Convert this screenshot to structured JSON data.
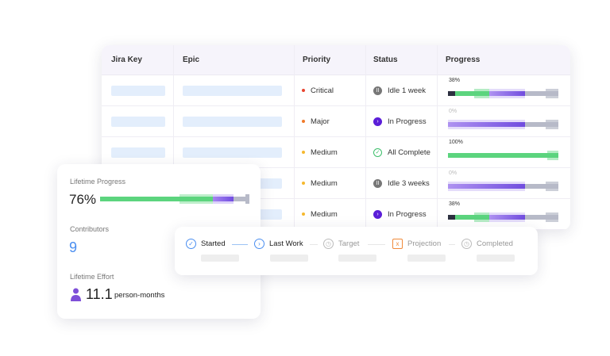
{
  "table": {
    "headers": [
      "Jira Key",
      "Epic",
      "Priority",
      "Status",
      "Progress"
    ],
    "rows": [
      {
        "priority": "Critical",
        "priority_color": "#e8442f",
        "status": "Idle 1 week",
        "status_icon": "pause-icon",
        "progress": "38%",
        "progress_value": 38
      },
      {
        "priority": "Major",
        "priority_color": "#f07a2a",
        "status": "In Progress",
        "status_icon": "play-icon",
        "progress": "0%",
        "progress_value": 0
      },
      {
        "priority": "Medium",
        "priority_color": "#f5b82e",
        "status": "All Complete",
        "status_icon": "check-icon",
        "progress": "100%",
        "progress_value": 100
      },
      {
        "priority": "Medium",
        "priority_color": "#f5b82e",
        "status": "Idle 3 weeks",
        "status_icon": "pause-icon",
        "progress": "0%",
        "progress_value": 0
      },
      {
        "priority": "Medium",
        "priority_color": "#f5b82e",
        "status": "In Progress",
        "status_icon": "play-icon",
        "progress": "38%",
        "progress_value": 38
      }
    ]
  },
  "summary": {
    "lifetime_progress_label": "Lifetime Progress",
    "lifetime_progress": "76%",
    "contributors_label": "Contributors",
    "contributors": "9",
    "effort_label": "Lifetime Effort",
    "effort_value": "11.1",
    "effort_unit": "person-months"
  },
  "timeline": {
    "steps": [
      {
        "label": "Started",
        "icon": "check-circle-icon"
      },
      {
        "label": "Last Work",
        "icon": "chevron-circle-icon"
      },
      {
        "label": "Target",
        "icon": "clock-icon"
      },
      {
        "label": "Projection",
        "icon": "calendar-x-icon"
      },
      {
        "label": "Completed",
        "icon": "clock-icon"
      }
    ]
  },
  "colors": {
    "green": "#5cd47e",
    "purple": "#6a3fe0",
    "gray": "#b7bac8",
    "blue": "#4a8ef0"
  }
}
